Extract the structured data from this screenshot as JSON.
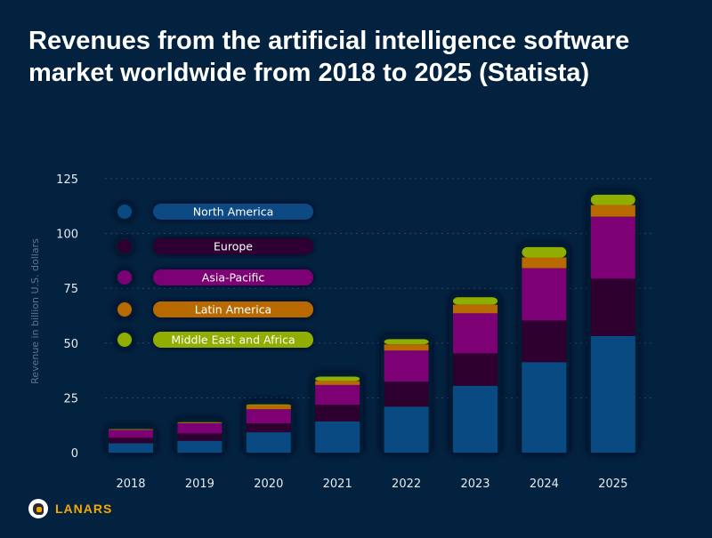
{
  "chart_data": {
    "type": "bar",
    "stacked": true,
    "title": "Revenues from the artificial intelligence software market worldwide from 2018 to 2025 (Statista)",
    "xlabel": "",
    "ylabel": "Revenue in billion U.S. dollars",
    "ylim": [
      0,
      125
    ],
    "yticks": [
      0,
      25,
      50,
      75,
      100,
      125
    ],
    "grid": true,
    "legend_placement": "top-left",
    "categories": [
      "2018",
      "2019",
      "2020",
      "2021",
      "2022",
      "2023",
      "2024",
      "2025"
    ],
    "series": [
      {
        "name": "North America",
        "color": "#0a4a82",
        "values": [
          4.3,
          5.4,
          9.3,
          14.2,
          21.0,
          30.5,
          41.3,
          53.2
        ]
      },
      {
        "name": "Europe",
        "color": "#2e0030",
        "values": [
          2.5,
          3.4,
          4.1,
          7.7,
          11.4,
          14.8,
          19.0,
          26.2
        ]
      },
      {
        "name": "Asia-Pacific",
        "color": "#7d0074",
        "values": [
          3.6,
          4.6,
          6.4,
          9.0,
          14.2,
          18.3,
          23.9,
          28.3
        ]
      },
      {
        "name": "Latin America",
        "color": "#b86a00",
        "values": [
          0.2,
          0.3,
          1.9,
          1.8,
          2.8,
          3.9,
          4.9,
          5.3
        ]
      },
      {
        "name": "Middle East and Africa",
        "color": "#8fae00",
        "values": [
          0.1,
          0.2,
          0.3,
          2.0,
          2.4,
          3.4,
          4.7,
          4.7
        ]
      }
    ]
  },
  "branding": {
    "logo_text": "LANARS"
  }
}
